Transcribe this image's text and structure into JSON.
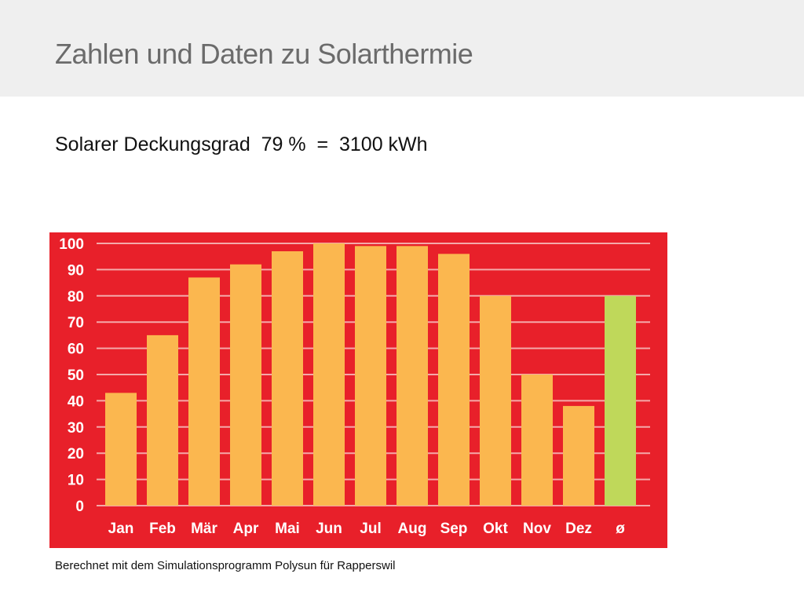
{
  "slide": {
    "title": "Zahlen und Daten zu Solarthermie",
    "subtitle": "Solarer Deckungsgrad  79 %  =  3100 kWh",
    "footnote": "Berechnet mit dem Simulationsprogramm Polysun für Rapperswil"
  },
  "colors": {
    "background": "#e8202a",
    "bar": "#fbb74f",
    "average_bar": "#bfd85a",
    "grid": "#f4a9a9",
    "tick_text": "#ffffff"
  },
  "chart_data": {
    "type": "bar",
    "title": "",
    "xlabel": "",
    "ylabel": "",
    "categories": [
      "Jan",
      "Feb",
      "Mär",
      "Apr",
      "Mai",
      "Jun",
      "Jul",
      "Aug",
      "Sep",
      "Okt",
      "Nov",
      "Dez",
      "ø"
    ],
    "values": [
      43,
      65,
      87,
      92,
      97,
      100,
      99,
      99,
      96,
      80,
      50,
      38,
      80
    ],
    "highlight_category": "ø",
    "ylim": [
      0,
      100
    ],
    "yticks": [
      0,
      10,
      20,
      30,
      40,
      50,
      60,
      70,
      80,
      90,
      100
    ],
    "grid": true,
    "legend": "none"
  }
}
